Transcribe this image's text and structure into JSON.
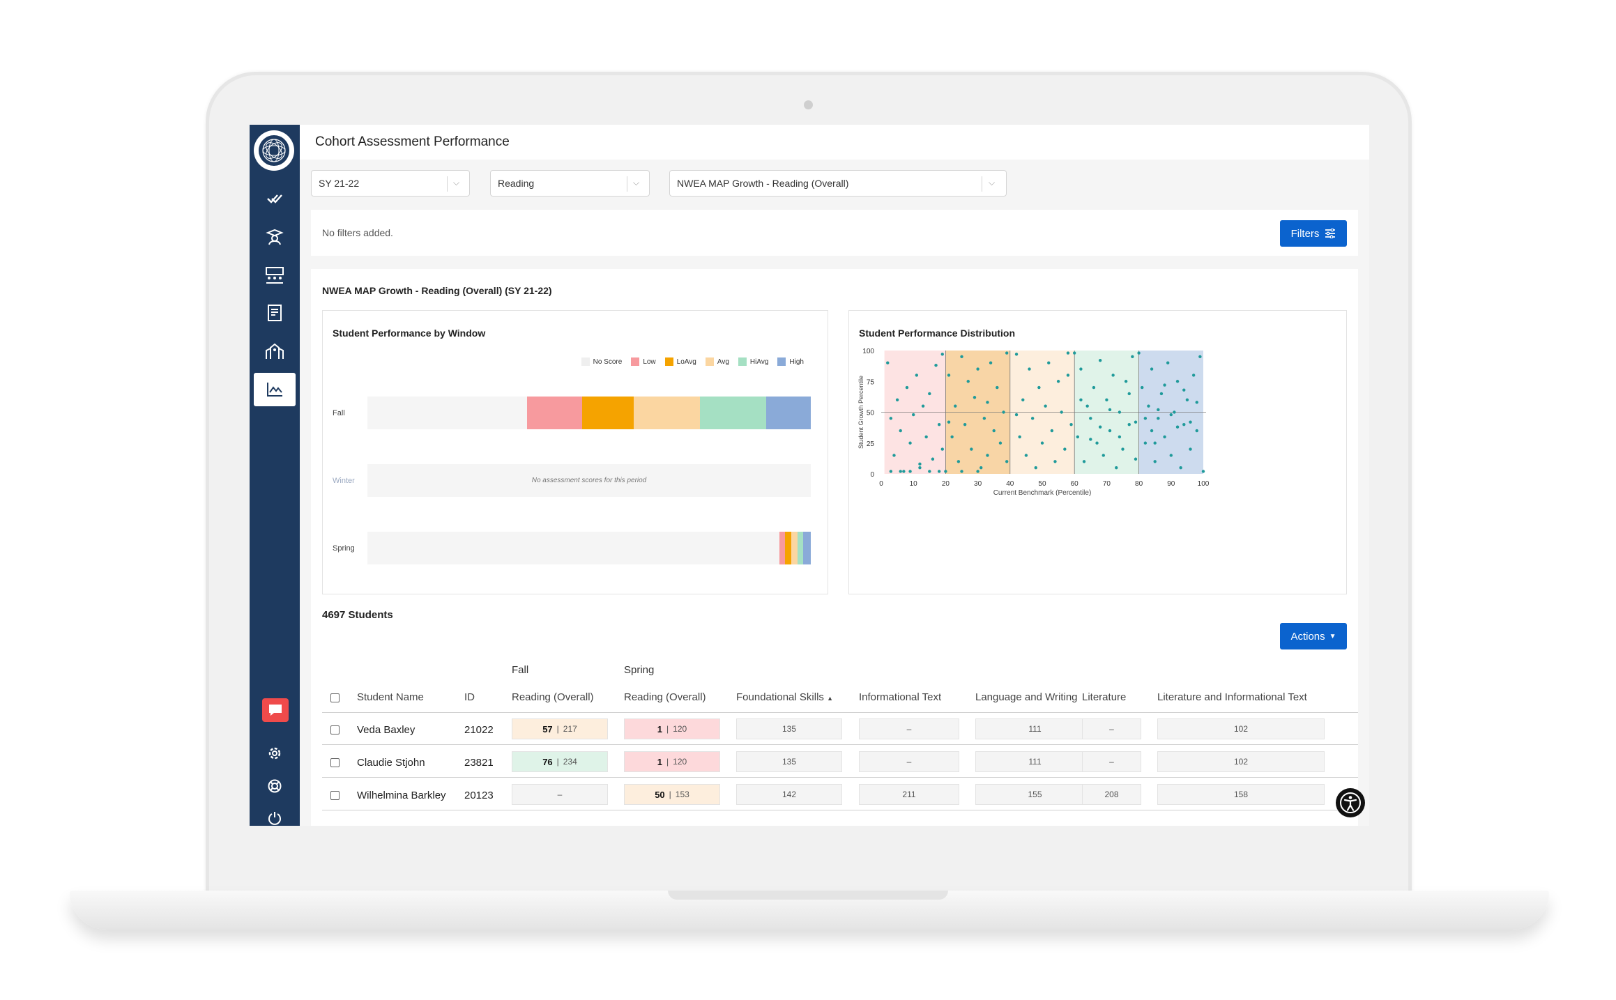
{
  "app": {
    "title": "Cohort Assessment Performance"
  },
  "selects": {
    "year": "SY 21-22",
    "subject": "Reading",
    "assessment": "NWEA MAP Growth - Reading (Overall)"
  },
  "filters": {
    "status": "No filters added.",
    "button_label": "Filters"
  },
  "panel": {
    "title": "NWEA MAP Growth - Reading (Overall) (SY 21-22)"
  },
  "window_chart": {
    "title": "Student Performance by Window",
    "legend": [
      {
        "label": "No Score",
        "color": "#efefef"
      },
      {
        "label": "Low",
        "color": "#f79a9e"
      },
      {
        "label": "LoAvg",
        "color": "#f5a300"
      },
      {
        "label": "Avg",
        "color": "#fbd6a1"
      },
      {
        "label": "HiAvg",
        "color": "#a5e0c3"
      },
      {
        "label": "High",
        "color": "#8aaad8"
      }
    ],
    "windows": [
      {
        "label": "Fall",
        "segments": [
          0.36,
          0.125,
          0.115,
          0.15,
          0.15,
          0.1
        ]
      },
      {
        "label": "Winter",
        "note": "No assessment scores for this period"
      },
      {
        "label": "Spring",
        "segments": [
          0.93,
          0.012,
          0.014,
          0.014,
          0.012,
          0.018
        ]
      }
    ]
  },
  "chart_data": {
    "type": "scatter",
    "title": "Student Performance Distribution",
    "xlabel": "Current Benchmark (Percentile)",
    "ylabel": "Student Growth Percentile",
    "xlim": [
      0,
      100
    ],
    "ylim": [
      0,
      100
    ],
    "x_ticks": [
      "0",
      "10",
      "20",
      "30",
      "40",
      "50",
      "60",
      "70",
      "80",
      "90",
      "100"
    ],
    "y_ticks": [
      "0",
      "25",
      "50",
      "75",
      "100"
    ],
    "bands": [
      {
        "from": 1,
        "to": 20,
        "color": "#fde3e3"
      },
      {
        "from": 20,
        "to": 40,
        "color": "#f8d5a6"
      },
      {
        "from": 40,
        "to": 60,
        "color": "#fdeedd"
      },
      {
        "from": 60,
        "to": 80,
        "color": "#e0f3e9"
      },
      {
        "from": 80,
        "to": 100,
        "color": "#cddbee"
      }
    ],
    "point_color": "#1f9a9a",
    "points": [
      [
        2,
        90
      ],
      [
        3,
        45
      ],
      [
        4,
        15
      ],
      [
        5,
        60
      ],
      [
        6,
        35
      ],
      [
        7,
        2
      ],
      [
        8,
        70
      ],
      [
        9,
        25
      ],
      [
        10,
        48
      ],
      [
        11,
        80
      ],
      [
        12,
        5
      ],
      [
        13,
        55
      ],
      [
        14,
        30
      ],
      [
        15,
        65
      ],
      [
        16,
        12
      ],
      [
        17,
        88
      ],
      [
        18,
        40
      ],
      [
        19,
        20
      ],
      [
        3,
        2
      ],
      [
        6,
        2
      ],
      [
        9,
        2
      ],
      [
        12,
        8
      ],
      [
        15,
        2
      ],
      [
        18,
        2
      ],
      [
        19,
        97
      ],
      [
        21,
        80
      ],
      [
        22,
        30
      ],
      [
        23,
        55
      ],
      [
        24,
        10
      ],
      [
        25,
        95
      ],
      [
        26,
        40
      ],
      [
        27,
        75
      ],
      [
        28,
        20
      ],
      [
        29,
        62
      ],
      [
        30,
        85
      ],
      [
        31,
        5
      ],
      [
        32,
        45
      ],
      [
        33,
        15
      ],
      [
        34,
        90
      ],
      [
        35,
        35
      ],
      [
        36,
        70
      ],
      [
        37,
        25
      ],
      [
        38,
        50
      ],
      [
        39,
        10
      ],
      [
        39,
        98
      ],
      [
        20,
        2
      ],
      [
        25,
        2
      ],
      [
        30,
        2
      ],
      [
        33,
        58
      ],
      [
        21,
        42
      ],
      [
        42,
        97
      ],
      [
        43,
        30
      ],
      [
        44,
        60
      ],
      [
        45,
        15
      ],
      [
        46,
        85
      ],
      [
        47,
        45
      ],
      [
        48,
        5
      ],
      [
        49,
        70
      ],
      [
        50,
        25
      ],
      [
        51,
        55
      ],
      [
        52,
        90
      ],
      [
        53,
        35
      ],
      [
        54,
        10
      ],
      [
        55,
        75
      ],
      [
        56,
        50
      ],
      [
        57,
        20
      ],
      [
        58,
        80
      ],
      [
        59,
        40
      ],
      [
        42,
        48
      ],
      [
        58,
        98
      ],
      [
        60,
        98
      ],
      [
        61,
        30
      ],
      [
        62,
        85
      ],
      [
        63,
        10
      ],
      [
        64,
        55
      ],
      [
        65,
        45
      ],
      [
        66,
        70
      ],
      [
        67,
        25
      ],
      [
        68,
        92
      ],
      [
        69,
        15
      ],
      [
        70,
        60
      ],
      [
        71,
        35
      ],
      [
        72,
        80
      ],
      [
        73,
        5
      ],
      [
        74,
        50
      ],
      [
        75,
        20
      ],
      [
        76,
        75
      ],
      [
        77,
        40
      ],
      [
        78,
        95
      ],
      [
        79,
        12
      ],
      [
        62,
        60
      ],
      [
        65,
        28
      ],
      [
        68,
        38
      ],
      [
        71,
        52
      ],
      [
        74,
        30
      ],
      [
        77,
        65
      ],
      [
        79,
        42
      ],
      [
        80,
        98
      ],
      [
        81,
        70
      ],
      [
        82,
        25
      ],
      [
        83,
        55
      ],
      [
        84,
        85
      ],
      [
        85,
        10
      ],
      [
        86,
        45
      ],
      [
        87,
        65
      ],
      [
        88,
        30
      ],
      [
        89,
        90
      ],
      [
        90,
        15
      ],
      [
        91,
        50
      ],
      [
        92,
        75
      ],
      [
        93,
        5
      ],
      [
        94,
        40
      ],
      [
        95,
        60
      ],
      [
        96,
        20
      ],
      [
        97,
        80
      ],
      [
        98,
        35
      ],
      [
        99,
        95
      ],
      [
        100,
        2
      ],
      [
        82,
        45
      ],
      [
        84,
        35
      ],
      [
        86,
        52
      ],
      [
        88,
        72
      ],
      [
        90,
        48
      ],
      [
        92,
        38
      ],
      [
        94,
        68
      ],
      [
        96,
        42
      ],
      [
        98,
        58
      ],
      [
        85,
        25
      ]
    ]
  },
  "students": {
    "count_label": "4697 Students",
    "actions_label": "Actions",
    "group_headers": [
      "Fall",
      "Spring"
    ],
    "columns": [
      "Student Name",
      "ID",
      "Reading (Overall)",
      "Reading (Overall)",
      "Foundational Skills",
      "Informational Text",
      "Language and Writing",
      "Literature",
      "Literature and Informational Text"
    ],
    "rows": [
      {
        "name": "Veda Baxley",
        "id": "21022",
        "fall": {
          "pct": "57",
          "score": "217",
          "color": "#fdeedd"
        },
        "spring": {
          "pct": "1",
          "score": "120",
          "color": "#fdd9db"
        },
        "foundational": "135",
        "informational": "–",
        "language": "111",
        "literature": "–",
        "lit_info": "102"
      },
      {
        "name": "Claudie Stjohn",
        "id": "23821",
        "fall": {
          "pct": "76",
          "score": "234",
          "color": "#dff3e8"
        },
        "spring": {
          "pct": "1",
          "score": "120",
          "color": "#fdd9db"
        },
        "foundational": "135",
        "informational": "–",
        "language": "111",
        "literature": "–",
        "lit_info": "102"
      },
      {
        "name": "Wilhelmina Barkley",
        "id": "20123",
        "fall": {
          "pct": "",
          "score": "–",
          "color": "#f4f4f4"
        },
        "spring": {
          "pct": "50",
          "score": "153",
          "color": "#fdeedd"
        },
        "foundational": "142",
        "informational": "211",
        "language": "155",
        "literature": "208",
        "lit_info": "158"
      }
    ]
  },
  "colors": {
    "sidebar": "#1e3a5f",
    "primary": "#0b63ce",
    "chat": "#ef4b4b"
  }
}
